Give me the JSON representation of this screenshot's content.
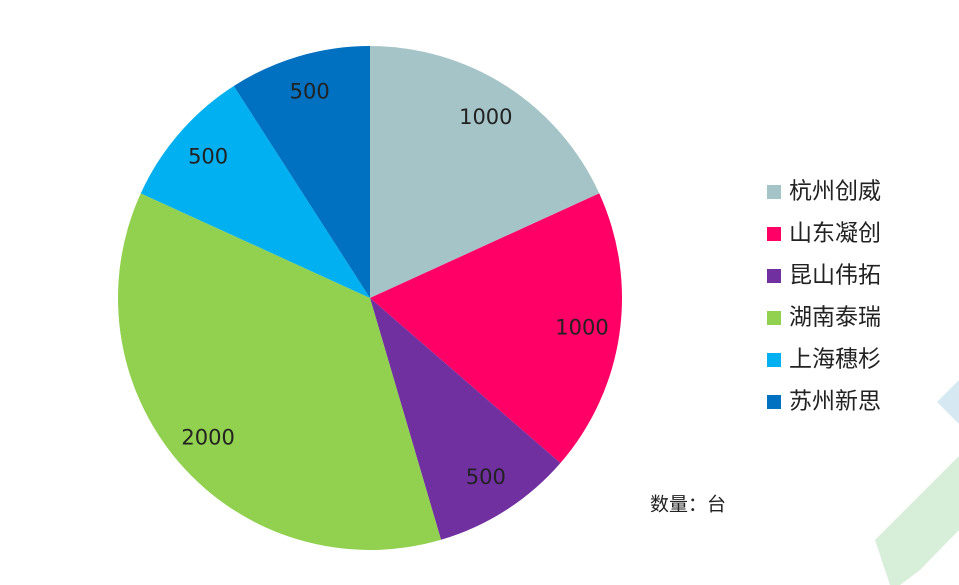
{
  "chart_data": {
    "type": "pie",
    "categories": [
      "杭州创威",
      "山东凝创",
      "昆山伟拓",
      "湖南泰瑞",
      "上海穗杉",
      "苏州新思"
    ],
    "values": [
      1000,
      1000,
      500,
      2000,
      500,
      500
    ],
    "colors": [
      "#a5c4c8",
      "#ff0066",
      "#7030a0",
      "#92d050",
      "#00b0f0",
      "#0070c0"
    ],
    "annotation": "数量：台",
    "legend": "right"
  }
}
